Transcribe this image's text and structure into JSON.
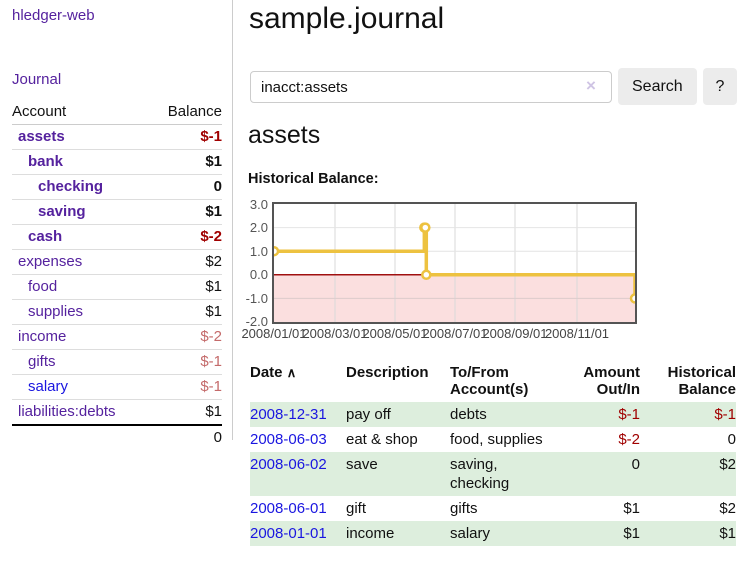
{
  "app": {
    "title": "hledger-web"
  },
  "nav": {
    "journal": "Journal"
  },
  "colors": {
    "link_purple": "#55229e",
    "link_blue": "#1a16e0",
    "negative_bold_red": "#a00000",
    "negative_soft_rose": "#c46a6a",
    "row_green": "#ddeedd",
    "series_gold": "#edc240",
    "zero_line_red": "#a01010",
    "below_zero_pink": "#fbdfdf"
  },
  "sidebar": {
    "header": {
      "account": "Account",
      "balance": "Balance"
    },
    "accounts": [
      {
        "name": "assets",
        "balance": "$-1"
      },
      {
        "name": "bank",
        "balance": "$1"
      },
      {
        "name": "checking",
        "balance": "0"
      },
      {
        "name": "saving",
        "balance": "$1"
      },
      {
        "name": "cash",
        "balance": "$-2"
      },
      {
        "name": "expenses",
        "balance": "$2"
      },
      {
        "name": "food",
        "balance": "$1"
      },
      {
        "name": "supplies",
        "balance": "$1"
      },
      {
        "name": "income",
        "balance": "$-2"
      },
      {
        "name": "gifts",
        "balance": "$-1"
      },
      {
        "name": "salary",
        "balance": "$-1"
      },
      {
        "name": "liabilities:debts",
        "balance": "$1"
      }
    ],
    "total": "0"
  },
  "main": {
    "title": "sample.journal",
    "search": {
      "value": "inacct:assets",
      "clear_icon": "×",
      "button": "Search",
      "help": "?"
    },
    "account_heading": "assets",
    "chart_label": "Historical Balance:"
  },
  "chart_data": {
    "type": "line",
    "step": true,
    "title": "Historical Balance:",
    "series": [
      {
        "name": "$",
        "color": "#edc240",
        "points": [
          [
            "2008-01-01",
            1
          ],
          [
            "2008-06-01",
            2
          ],
          [
            "2008-06-02",
            2
          ],
          [
            "2008-06-03",
            0
          ],
          [
            "2008-12-31",
            -1
          ]
        ]
      }
    ],
    "x_range": [
      "2008-01-01",
      "2008-12-31"
    ],
    "ylim": [
      -2,
      3
    ],
    "y_ticks": [
      "3.0",
      "2.0",
      "1.0",
      "0.0",
      "-1.0",
      "-2.0"
    ],
    "x_ticks": [
      "2008/01/01",
      "2008/03/01",
      "2008/05/01",
      "2008/07/01",
      "2008/09/01",
      "2008/11/01"
    ],
    "grid": true,
    "legend": {
      "label": "$",
      "position": "top-right"
    },
    "below_zero_shaded": true
  },
  "register": {
    "sort_icon": "∧",
    "headers": {
      "date": "Date",
      "description": "Description",
      "accounts": "To/From Account(s)",
      "amount": "Amount Out/In",
      "balance": "Historical Balance"
    },
    "rows": [
      {
        "date": "2008-12-31",
        "description": "pay off",
        "accounts": "debts",
        "amount": "$-1",
        "balance": "$-1"
      },
      {
        "date": "2008-06-03",
        "description": "eat & shop",
        "accounts": "food, supplies",
        "amount": "$-2",
        "balance": "0"
      },
      {
        "date": "2008-06-02",
        "description": "save",
        "accounts": "saving, checking",
        "amount": "0",
        "balance": "$2"
      },
      {
        "date": "2008-06-01",
        "description": "gift",
        "accounts": "gifts",
        "amount": "$1",
        "balance": "$2"
      },
      {
        "date": "2008-01-01",
        "description": "income",
        "accounts": "salary",
        "amount": "$1",
        "balance": "$1"
      }
    ]
  }
}
